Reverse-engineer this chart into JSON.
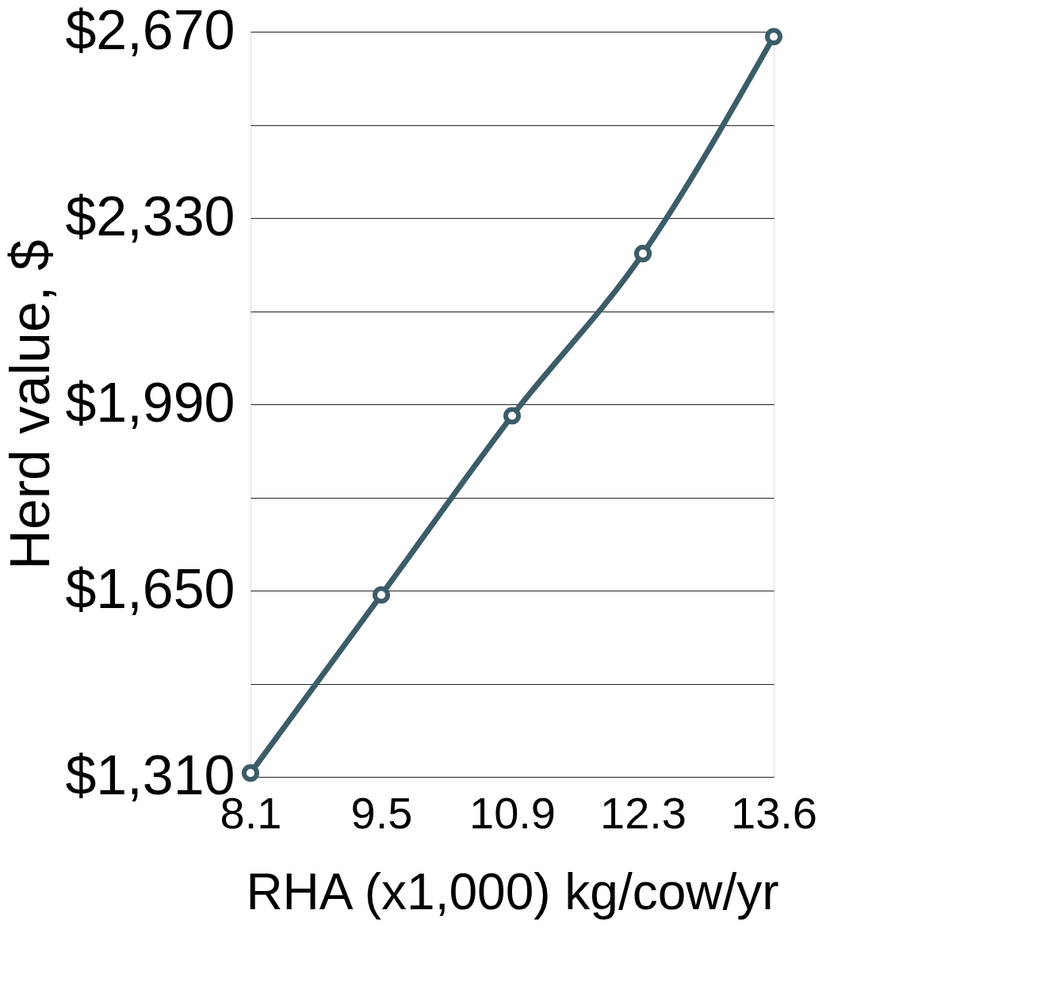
{
  "chart_data": {
    "type": "line",
    "xlabel": "RHA (x1,000) kg/cow/yr",
    "ylabel": "Herd value, $",
    "categories": [
      "8.1",
      "9.5",
      "10.9",
      "12.3",
      "13.6"
    ],
    "series": [
      {
        "color": "#3b5c68",
        "values": [
          1317,
          1642,
          1969,
          2265,
          2661
        ]
      }
    ],
    "ylim": [
      1310,
      2670
    ],
    "yticks": [
      {
        "value": 1310,
        "label": "$1,310"
      },
      {
        "value": 1480,
        "label": null
      },
      {
        "value": 1650,
        "label": "$1,650"
      },
      {
        "value": 1820,
        "label": null
      },
      {
        "value": 1990,
        "label": "$1,990"
      },
      {
        "value": 2160,
        "label": null
      },
      {
        "value": 2330,
        "label": "$2,330"
      },
      {
        "value": 2500,
        "label": null
      },
      {
        "value": 2670,
        "label": "$2,670"
      }
    ],
    "grid": "y",
    "marker": "circle",
    "line_style": "solid"
  }
}
